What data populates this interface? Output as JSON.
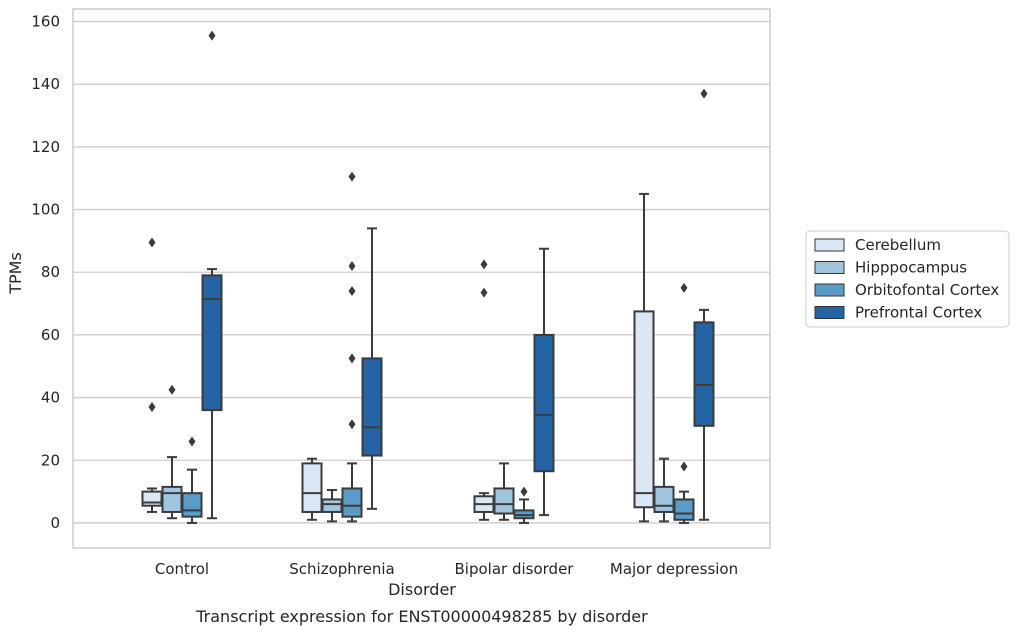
{
  "chart_data": {
    "type": "box",
    "caption": "Transcript expression for ENST00000498285 by disorder",
    "xlabel": "Disorder",
    "ylabel": "TPMs",
    "ylim": [
      -8,
      164
    ],
    "yticks": [
      0,
      20,
      40,
      60,
      80,
      100,
      120,
      140,
      160
    ],
    "grid": true,
    "legend_position": "right",
    "categories": [
      "Control",
      "Schizophrenia",
      "Bipolar disorder",
      "Major depression"
    ],
    "series": [
      {
        "name": "Cerebellum",
        "color": "#dae8f5",
        "boxes": [
          {
            "whisker_low": 3.5,
            "q1": 5.5,
            "median": 6.5,
            "q3": 10,
            "whisker_high": 11,
            "outliers": [
              37,
              89.5
            ]
          },
          {
            "whisker_low": 1,
            "q1": 3.5,
            "median": 9.5,
            "q3": 19,
            "whisker_high": 20.5,
            "outliers": []
          },
          {
            "whisker_low": 1,
            "q1": 3.5,
            "median": 6,
            "q3": 8.5,
            "whisker_high": 9.5,
            "outliers": [
              73.5,
              82.5
            ]
          },
          {
            "whisker_low": 0.5,
            "q1": 5,
            "median": 9.5,
            "q3": 67.5,
            "whisker_high": 105,
            "outliers": []
          }
        ]
      },
      {
        "name": "Hipppocampus",
        "color": "#a0c6df",
        "boxes": [
          {
            "whisker_low": 1.5,
            "q1": 3.5,
            "median": 9.5,
            "q3": 11.5,
            "whisker_high": 21,
            "outliers": [
              42.5
            ]
          },
          {
            "whisker_low": 0.5,
            "q1": 3.5,
            "median": 6,
            "q3": 7.5,
            "whisker_high": 10.5,
            "outliers": []
          },
          {
            "whisker_low": 1,
            "q1": 3,
            "median": 6,
            "q3": 11,
            "whisker_high": 19,
            "outliers": []
          },
          {
            "whisker_low": 0.5,
            "q1": 3.5,
            "median": 5.5,
            "q3": 11.5,
            "whisker_high": 20.5,
            "outliers": []
          }
        ]
      },
      {
        "name": "Orbitofontal Cortex",
        "color": "#5a9bc7",
        "boxes": [
          {
            "whisker_low": 0,
            "q1": 2,
            "median": 4,
            "q3": 9.5,
            "whisker_high": 17,
            "outliers": [
              26
            ]
          },
          {
            "whisker_low": 0.5,
            "q1": 2,
            "median": 5.5,
            "q3": 11,
            "whisker_high": 19,
            "outliers": [
              31.5,
              52.5,
              74,
              82,
              110.5
            ]
          },
          {
            "whisker_low": 0,
            "q1": 1.5,
            "median": 2.5,
            "q3": 4,
            "whisker_high": 7.5,
            "outliers": [
              10
            ]
          },
          {
            "whisker_low": 0,
            "q1": 1,
            "median": 3,
            "q3": 7.5,
            "whisker_high": 10,
            "outliers": [
              18,
              75
            ]
          }
        ]
      },
      {
        "name": "Prefrontal Cortex",
        "color": "#2464a5",
        "boxes": [
          {
            "whisker_low": 1.5,
            "q1": 36,
            "median": 71.5,
            "q3": 79,
            "whisker_high": 81,
            "outliers": [
              155.5
            ]
          },
          {
            "whisker_low": 4.5,
            "q1": 21.5,
            "median": 30.5,
            "q3": 52.5,
            "whisker_high": 94,
            "outliers": []
          },
          {
            "whisker_low": 2.5,
            "q1": 16.5,
            "median": 34.5,
            "q3": 60,
            "whisker_high": 87.5,
            "outliers": []
          },
          {
            "whisker_low": 1,
            "q1": 31,
            "median": 44,
            "q3": 64,
            "whisker_high": 68,
            "outliers": [
              137
            ]
          }
        ]
      }
    ]
  }
}
